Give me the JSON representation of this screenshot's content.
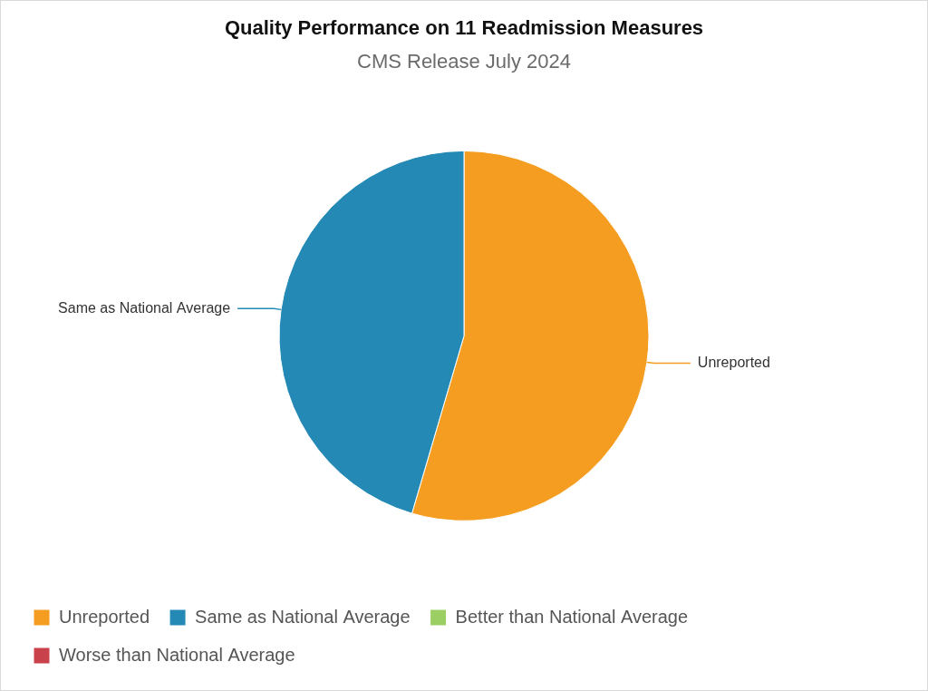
{
  "chart_data": {
    "type": "pie",
    "title": "Quality Performance on 11 Readmission Measures",
    "subtitle": "CMS Release July 2024",
    "categories": [
      "Unreported",
      "Same as National Average",
      "Better than National Average",
      "Worse than National Average"
    ],
    "values": [
      6,
      5,
      0,
      0
    ],
    "colors": [
      "#f59d20",
      "#2489b5",
      "#9bcf63",
      "#c8414b"
    ],
    "legend": "bottom"
  }
}
